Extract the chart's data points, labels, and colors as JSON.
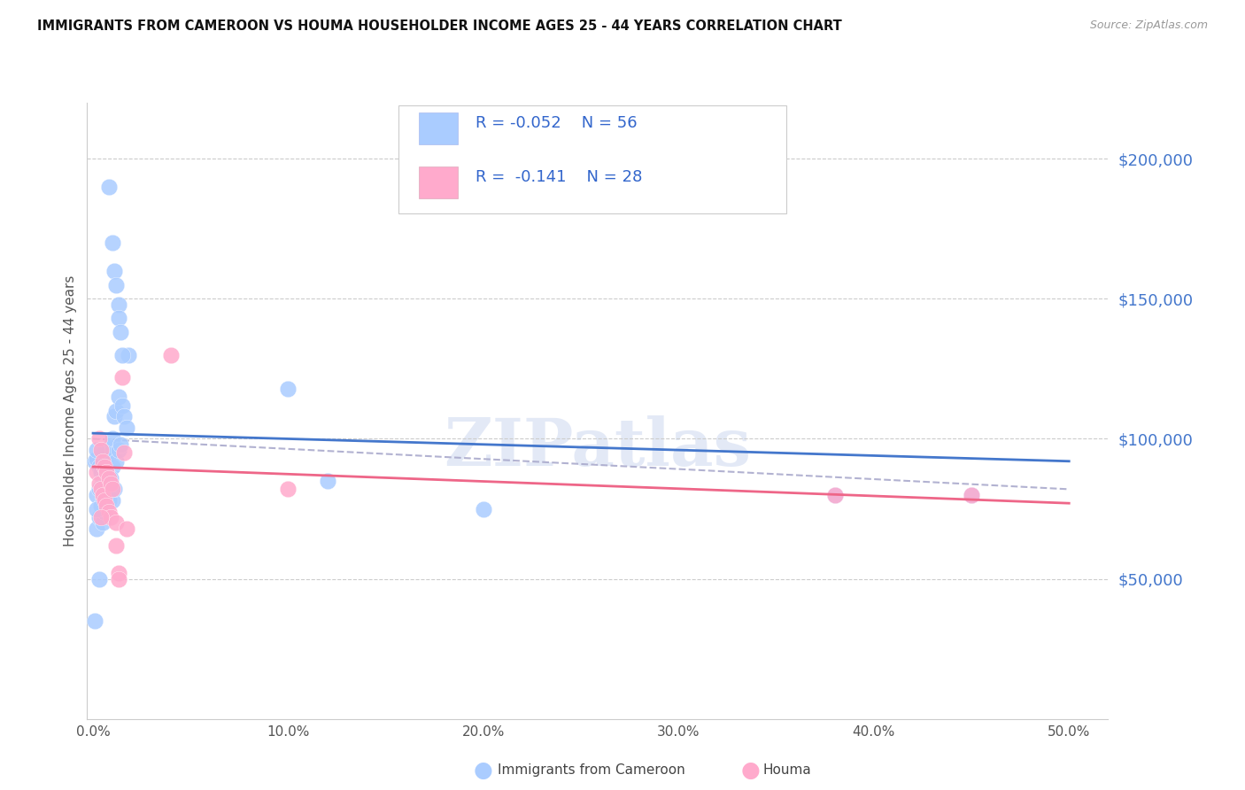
{
  "title": "IMMIGRANTS FROM CAMEROON VS HOUMA HOUSEHOLDER INCOME AGES 25 - 44 YEARS CORRELATION CHART",
  "source": "Source: ZipAtlas.com",
  "ylabel": "Householder Income Ages 25 - 44 years",
  "ytick_labels": [
    "$50,000",
    "$100,000",
    "$150,000",
    "$200,000"
  ],
  "ytick_vals": [
    50000,
    100000,
    150000,
    200000
  ],
  "ylim": [
    0,
    220000
  ],
  "xlim": [
    -0.003,
    0.52
  ],
  "watermark": "ZIPatlas",
  "series1_color": "#aaccff",
  "series2_color": "#ffaacc",
  "line1_color": "#4477cc",
  "line2_color": "#ee6688",
  "dash_color": "#aaaacc",
  "background_color": "#ffffff",
  "grid_color": "#cccccc",
  "right_tick_color": "#4477cc",
  "blue_x": [
    0.001,
    0.002,
    0.002,
    0.002,
    0.003,
    0.003,
    0.003,
    0.004,
    0.004,
    0.005,
    0.005,
    0.005,
    0.006,
    0.006,
    0.006,
    0.007,
    0.007,
    0.007,
    0.008,
    0.008,
    0.008,
    0.009,
    0.009,
    0.01,
    0.01,
    0.01,
    0.011,
    0.012,
    0.012,
    0.013,
    0.013,
    0.014,
    0.015,
    0.016,
    0.017,
    0.018,
    0.008,
    0.01,
    0.011,
    0.012,
    0.013,
    0.013,
    0.014,
    0.015,
    0.001,
    0.002,
    0.003,
    0.1,
    0.12,
    0.2,
    0.38,
    0.45,
    0.002,
    0.007,
    0.009,
    0.011
  ],
  "blue_y": [
    92000,
    93000,
    80000,
    68000,
    90000,
    82000,
    72000,
    88000,
    76000,
    86000,
    78000,
    70000,
    95000,
    84000,
    74000,
    93000,
    82000,
    76000,
    97000,
    86000,
    78000,
    95000,
    84000,
    100000,
    90000,
    78000,
    108000,
    110000,
    92000,
    115000,
    96000,
    98000,
    112000,
    108000,
    104000,
    130000,
    190000,
    170000,
    160000,
    155000,
    148000,
    143000,
    138000,
    130000,
    35000,
    75000,
    50000,
    118000,
    85000,
    75000,
    80000,
    80000,
    96000,
    88000,
    86000,
    82000
  ],
  "pink_x": [
    0.002,
    0.003,
    0.004,
    0.005,
    0.006,
    0.007,
    0.008,
    0.009,
    0.003,
    0.004,
    0.005,
    0.006,
    0.007,
    0.008,
    0.009,
    0.01,
    0.012,
    0.013,
    0.015,
    0.04,
    0.1,
    0.38,
    0.45,
    0.016,
    0.017,
    0.012,
    0.013,
    0.004
  ],
  "pink_y": [
    88000,
    84000,
    82000,
    80000,
    78000,
    76000,
    74000,
    72000,
    100000,
    96000,
    92000,
    90000,
    88000,
    86000,
    84000,
    82000,
    70000,
    52000,
    122000,
    130000,
    82000,
    80000,
    80000,
    95000,
    68000,
    62000,
    50000,
    72000
  ]
}
